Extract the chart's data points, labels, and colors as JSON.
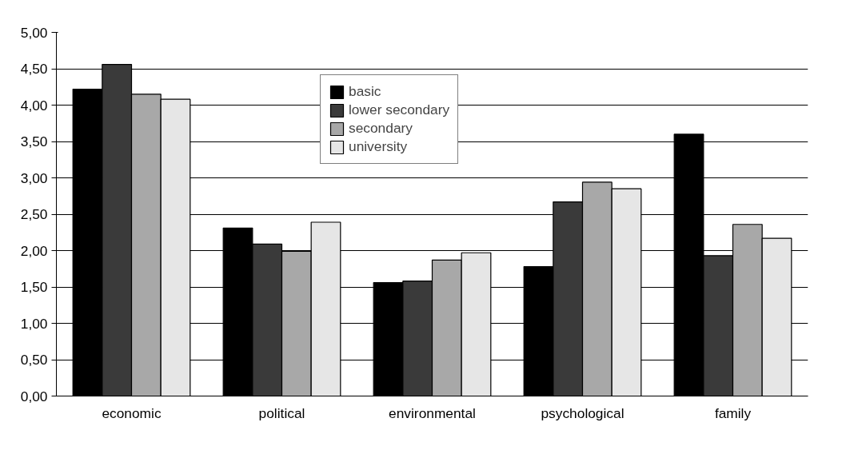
{
  "chart_data": {
    "type": "bar",
    "categories": [
      "economic",
      "political",
      "environmental",
      "psychological",
      "family"
    ],
    "series": [
      {
        "name": "basic",
        "color": "#000000",
        "values": [
          4.22,
          2.31,
          1.56,
          1.78,
          3.6
        ]
      },
      {
        "name": "lower secondary",
        "color": "#3a3a3a",
        "values": [
          4.56,
          2.09,
          1.58,
          2.67,
          1.93
        ]
      },
      {
        "name": "secondary",
        "color": "#a8a8a8",
        "values": [
          4.15,
          1.99,
          1.87,
          2.94,
          2.36
        ]
      },
      {
        "name": "university",
        "color": "#e6e6e6",
        "values": [
          4.08,
          2.39,
          1.97,
          2.85,
          2.17
        ]
      }
    ],
    "ylim": [
      0,
      5
    ],
    "yticks": [
      {
        "value": 0,
        "label": "0,00"
      },
      {
        "value": 0.5,
        "label": "0,50"
      },
      {
        "value": 1,
        "label": "1,00"
      },
      {
        "value": 1.5,
        "label": "1,50"
      },
      {
        "value": 2,
        "label": "2,00"
      },
      {
        "value": 2.5,
        "label": "2,50"
      },
      {
        "value": 3,
        "label": "3,00"
      },
      {
        "value": 3.5,
        "label": "3,50"
      },
      {
        "value": 4,
        "label": "4,00"
      },
      {
        "value": 4.5,
        "label": "4,50"
      },
      {
        "value": 5,
        "label": "5,00"
      }
    ],
    "grid": "y",
    "legend": "top"
  }
}
